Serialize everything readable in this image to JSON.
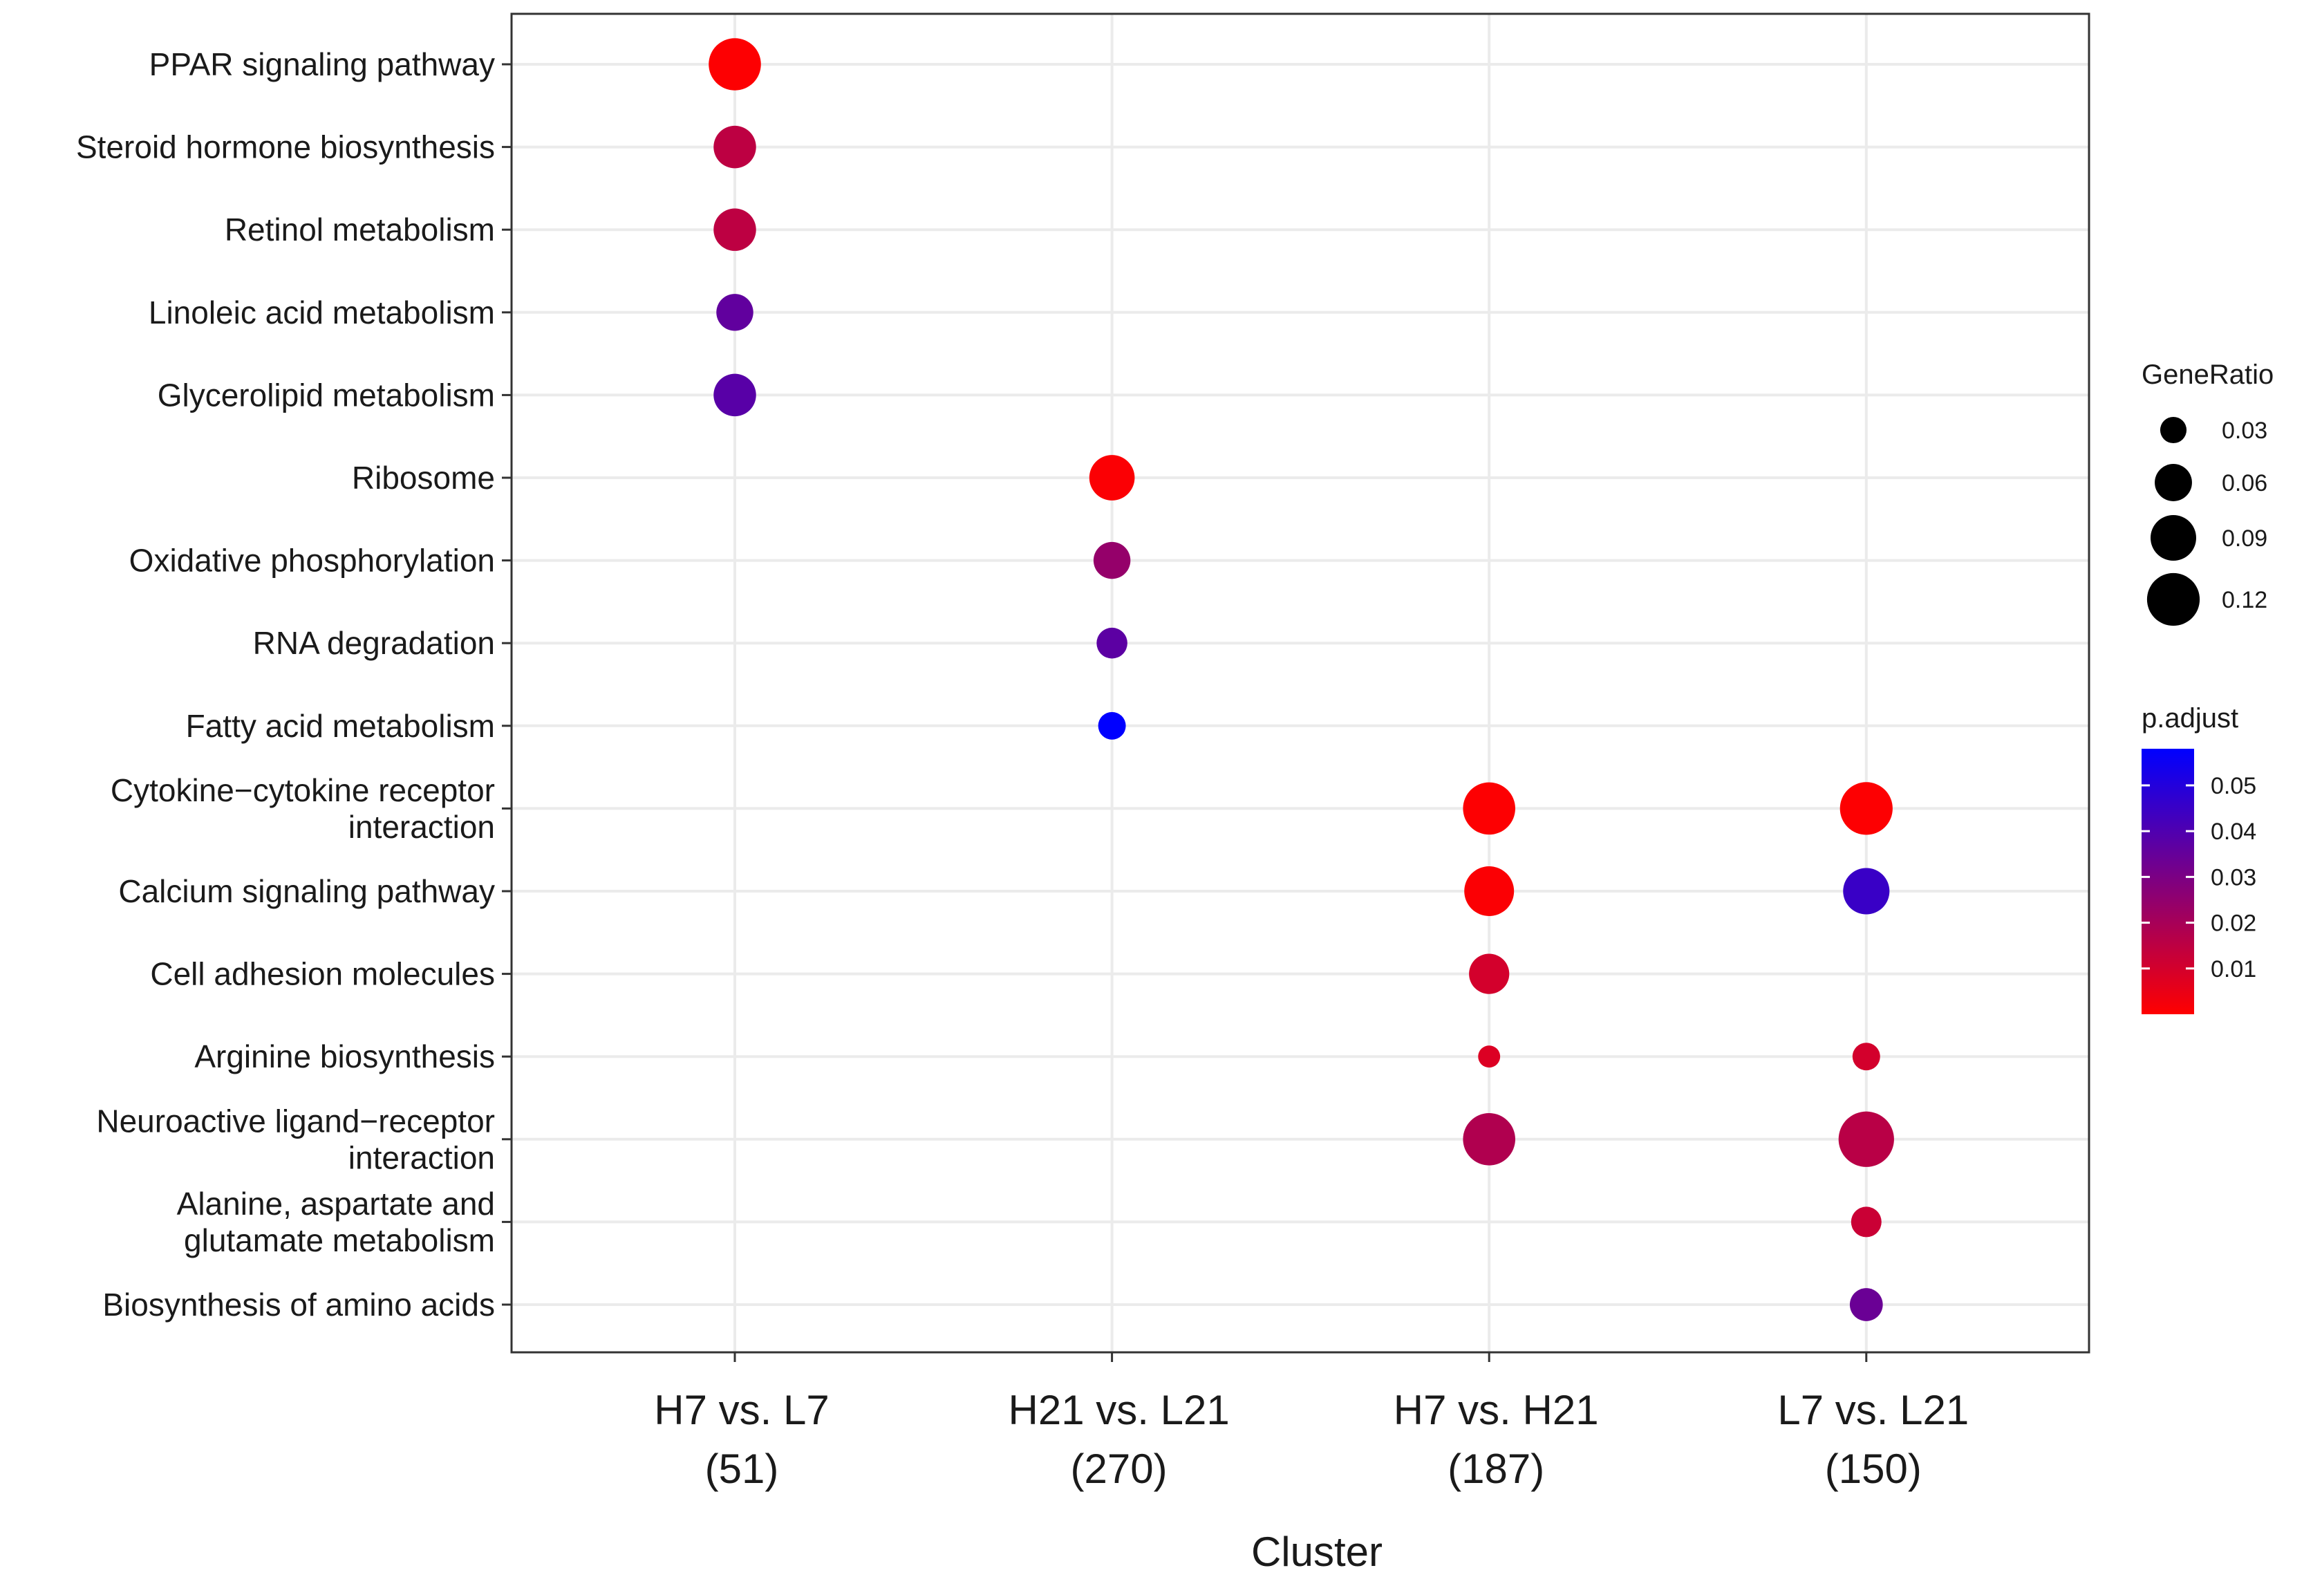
{
  "chart_data": {
    "type": "scatter",
    "subtype": "dot-plot",
    "xlabel": "Cluster",
    "ylabel": "",
    "clusters": [
      {
        "label": "H7 vs. L7",
        "count": "(51)"
      },
      {
        "label": "H21 vs. L21",
        "count": "(270)"
      },
      {
        "label": "H7 vs. H21",
        "count": "(187)"
      },
      {
        "label": "L7 vs. L21",
        "count": "(150)"
      }
    ],
    "categories": [
      {
        "lines": [
          "PPAR signaling pathway"
        ]
      },
      {
        "lines": [
          "Steroid hormone biosynthesis"
        ]
      },
      {
        "lines": [
          "Retinol metabolism"
        ]
      },
      {
        "lines": [
          "Linoleic acid metabolism"
        ]
      },
      {
        "lines": [
          "Glycerolipid metabolism"
        ]
      },
      {
        "lines": [
          "Ribosome"
        ]
      },
      {
        "lines": [
          "Oxidative phosphorylation"
        ]
      },
      {
        "lines": [
          "RNA degradation"
        ]
      },
      {
        "lines": [
          "Fatty acid metabolism"
        ]
      },
      {
        "lines": [
          "Cytokine−cytokine receptor",
          "interaction"
        ]
      },
      {
        "lines": [
          "Calcium signaling pathway"
        ]
      },
      {
        "lines": [
          "Cell adhesion molecules"
        ]
      },
      {
        "lines": [
          "Arginine biosynthesis"
        ]
      },
      {
        "lines": [
          "Neuroactive ligand−receptor",
          "interaction"
        ]
      },
      {
        "lines": [
          "Alanine, aspartate and",
          "glutamate metabolism"
        ]
      },
      {
        "lines": [
          "Biosynthesis of amino acids"
        ]
      }
    ],
    "points": [
      {
        "cluster": 0,
        "category": 0,
        "gene_ratio": 0.118,
        "p_adjust": 0.0005
      },
      {
        "cluster": 0,
        "category": 1,
        "gene_ratio": 0.078,
        "p_adjust": 0.015
      },
      {
        "cluster": 0,
        "category": 2,
        "gene_ratio": 0.078,
        "p_adjust": 0.015
      },
      {
        "cluster": 0,
        "category": 3,
        "gene_ratio": 0.059,
        "p_adjust": 0.036
      },
      {
        "cluster": 0,
        "category": 4,
        "gene_ratio": 0.078,
        "p_adjust": 0.038
      },
      {
        "cluster": 1,
        "category": 5,
        "gene_ratio": 0.089,
        "p_adjust": 0.001
      },
      {
        "cluster": 1,
        "category": 6,
        "gene_ratio": 0.059,
        "p_adjust": 0.024
      },
      {
        "cluster": 1,
        "category": 7,
        "gene_ratio": 0.041,
        "p_adjust": 0.037
      },
      {
        "cluster": 1,
        "category": 8,
        "gene_ratio": 0.033,
        "p_adjust": 0.058
      },
      {
        "cluster": 2,
        "category": 9,
        "gene_ratio": 0.118,
        "p_adjust": 0.0005
      },
      {
        "cluster": 2,
        "category": 10,
        "gene_ratio": 0.107,
        "p_adjust": 0.001
      },
      {
        "cluster": 2,
        "category": 11,
        "gene_ratio": 0.07,
        "p_adjust": 0.01
      },
      {
        "cluster": 2,
        "category": 12,
        "gene_ratio": 0.021,
        "p_adjust": 0.008
      },
      {
        "cluster": 2,
        "category": 13,
        "gene_ratio": 0.118,
        "p_adjust": 0.018
      },
      {
        "cluster": 3,
        "category": 9,
        "gene_ratio": 0.12,
        "p_adjust": 0.0005
      },
      {
        "cluster": 3,
        "category": 10,
        "gene_ratio": 0.093,
        "p_adjust": 0.045
      },
      {
        "cluster": 3,
        "category": 12,
        "gene_ratio": 0.033,
        "p_adjust": 0.01
      },
      {
        "cluster": 3,
        "category": 13,
        "gene_ratio": 0.133,
        "p_adjust": 0.016
      },
      {
        "cluster": 3,
        "category": 14,
        "gene_ratio": 0.04,
        "p_adjust": 0.012
      },
      {
        "cluster": 3,
        "category": 15,
        "gene_ratio": 0.047,
        "p_adjust": 0.034
      }
    ],
    "size_legend": {
      "title": "GeneRatio",
      "values": [
        0.03,
        0.06,
        0.09,
        0.12
      ],
      "labels": [
        "0.03",
        "0.06",
        "0.09",
        "0.12"
      ]
    },
    "color_legend": {
      "title": "p.adjust",
      "min": 0.0,
      "max": 0.058,
      "ticks": [
        0.01,
        0.02,
        0.03,
        0.04,
        0.05
      ],
      "labels": [
        "0.01",
        "0.02",
        "0.03",
        "0.04",
        "0.05"
      ],
      "low_color": "#ff0000",
      "high_color": "#0000ff"
    },
    "grid": true
  }
}
